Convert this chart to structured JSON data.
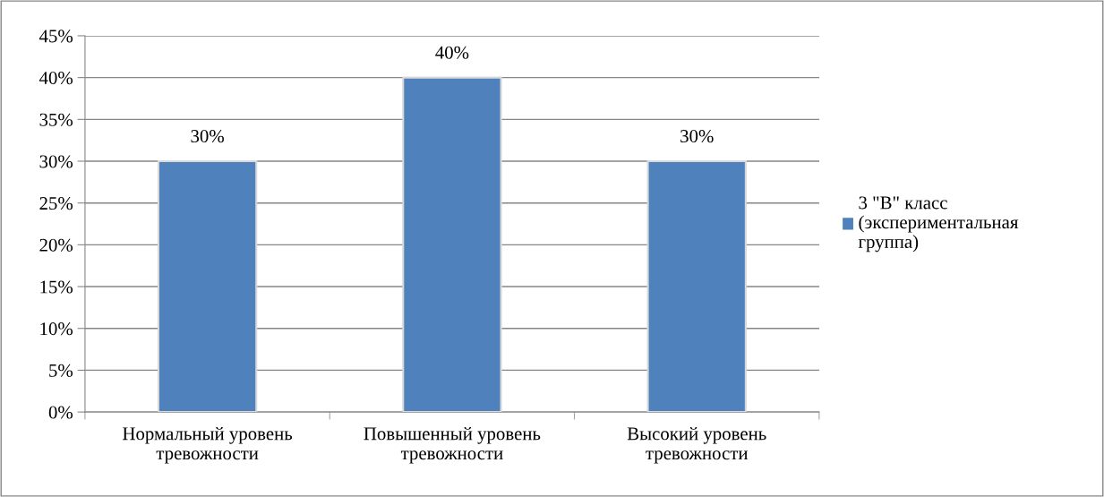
{
  "chart_data": {
    "type": "bar",
    "categories": [
      "Нормальный уровень\nтревожности",
      "Повышенный уровень\nтревожности",
      "Высокий уровень\nтревожности"
    ],
    "series": [
      {
        "name": "3 \"В\" класс\n(экспериментальная\nгруппа)",
        "color": "#4f81bd",
        "values": [
          30,
          40,
          30
        ],
        "value_labels": [
          "30%",
          "40%",
          "30%"
        ]
      }
    ],
    "ylim": [
      0,
      45
    ],
    "yticks": [
      {
        "value": 0,
        "label": "0%"
      },
      {
        "value": 5,
        "label": "5%"
      },
      {
        "value": 10,
        "label": "10%"
      },
      {
        "value": 15,
        "label": "15%"
      },
      {
        "value": 20,
        "label": "20%"
      },
      {
        "value": 25,
        "label": "25%"
      },
      {
        "value": 30,
        "label": "30%"
      },
      {
        "value": 35,
        "label": "35%"
      },
      {
        "value": 40,
        "label": "40%"
      },
      {
        "value": 45,
        "label": "45%"
      }
    ],
    "grid": "y",
    "legend": "right"
  }
}
